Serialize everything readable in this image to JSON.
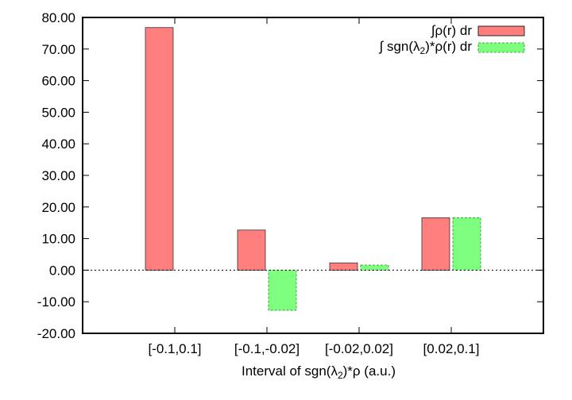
{
  "chart_data": {
    "type": "bar",
    "title": "",
    "xlabel": {
      "pre": "Interval of sgn(",
      "sym": "λ",
      "sub": "2",
      "post": ")*ρ (a.u.)"
    },
    "ylabel": "",
    "ylim": [
      -20,
      80
    ],
    "yticks": [
      "-20.00",
      "-10.00",
      "0.00",
      "10.00",
      "20.00",
      "30.00",
      "40.00",
      "50.00",
      "60.00",
      "70.00",
      "80.00"
    ],
    "categories": [
      "[-0.1,0.1]",
      "[-0.1,-0.02]",
      "[-0.02,0.02]",
      "[0.02,0.1]"
    ],
    "zero_line": "dotted",
    "grid": false,
    "legend_position": "top-right",
    "series": [
      {
        "name": "∫ρ(r) dr",
        "legend": {
          "main": "∫ρ(r) dr"
        },
        "values": [
          76.8,
          12.7,
          2.3,
          16.6
        ],
        "color": "#ff7f7f",
        "stroke": "dashed-none"
      },
      {
        "name": "∫ sgn(λ2)*ρ(r) dr",
        "legend": {
          "pre": "∫ sgn(",
          "sym": "λ",
          "sub": "2",
          "post": ")*ρ(r) dr"
        },
        "values": [
          null,
          -12.7,
          1.6,
          16.6
        ],
        "color": "#7fff7f",
        "stroke": "dashed"
      }
    ]
  }
}
